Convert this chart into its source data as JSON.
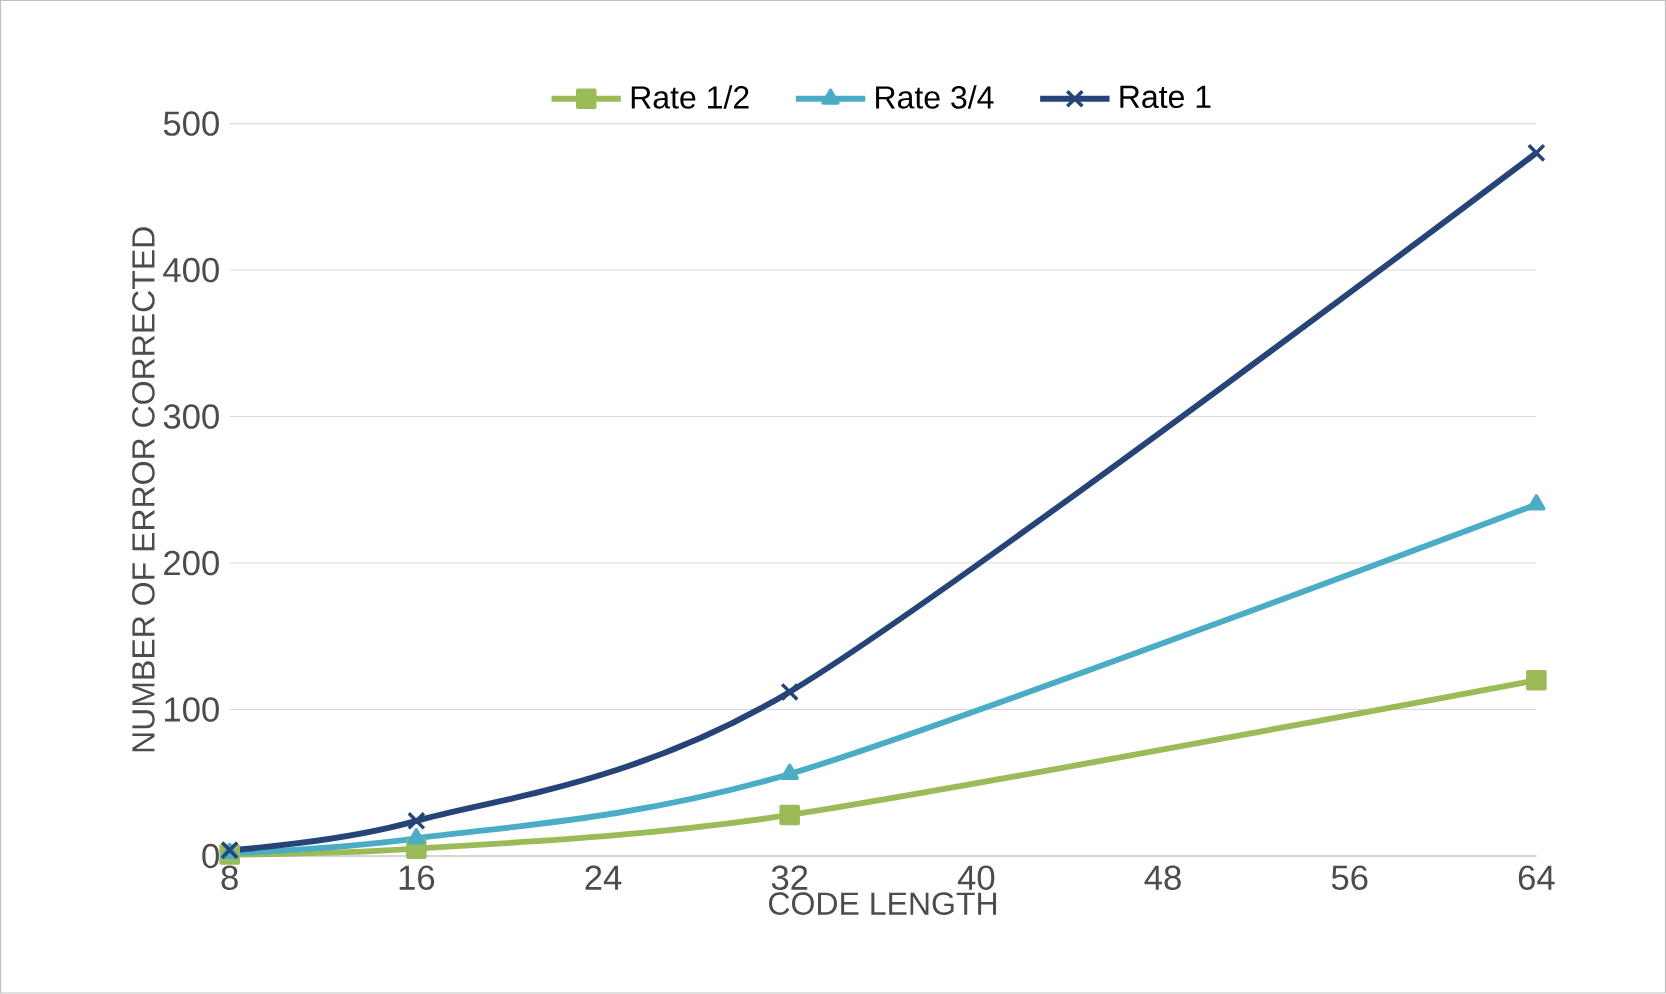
{
  "chart_data": {
    "type": "line",
    "xlabel": "CODE LENGTH",
    "ylabel": "NUMBER OF ERROR CORRECTED",
    "x": [
      8,
      16,
      32,
      64
    ],
    "series": [
      {
        "name": "Rate 1/2",
        "color": "#9bbb59",
        "marker": "square",
        "values": [
          1,
          5,
          28,
          120
        ]
      },
      {
        "name": "Rate 3/4",
        "color": "#4bacc6",
        "marker": "triangle",
        "values": [
          2,
          12,
          56,
          240
        ]
      },
      {
        "name": "Rate 1",
        "color": "#264478",
        "marker": "cross",
        "values": [
          4,
          24,
          112,
          480
        ]
      }
    ],
    "xlim": [
      8,
      64
    ],
    "xticks": [
      8,
      16,
      24,
      32,
      40,
      48,
      56,
      64
    ],
    "ylim": [
      0,
      500
    ],
    "yticks": [
      0,
      100,
      200,
      300,
      400,
      500
    ],
    "grid": "y",
    "legend": "top",
    "line_style": "solid"
  }
}
